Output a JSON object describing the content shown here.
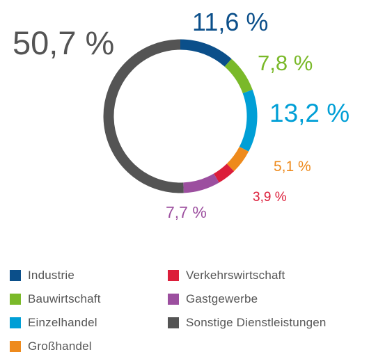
{
  "chart_data": {
    "type": "pie",
    "style": "donut",
    "legend_position": "bottom",
    "slices": [
      {
        "label": "Industrie",
        "value": 11.6,
        "display": "11,6 %",
        "color": "#0b4f8a"
      },
      {
        "label": "Bauwirtschaft",
        "value": 7.8,
        "display": "7,8 %",
        "color": "#7ab929"
      },
      {
        "label": "Einzelhandel",
        "value": 13.2,
        "display": "13,2 %",
        "color": "#009fd6"
      },
      {
        "label": "Großhandel",
        "value": 5.1,
        "display": "5,1 %",
        "color": "#ee8a1c"
      },
      {
        "label": "Verkehrswirtschaft",
        "value": 3.9,
        "display": "3,9 %",
        "color": "#dc1e3a"
      },
      {
        "label": "Gastgewerbe",
        "value": 7.7,
        "display": "7,7 %",
        "color": "#9c4f9f"
      },
      {
        "label": "Sonstige Dienstleistungen",
        "value": 50.7,
        "display": "50,7 %",
        "color": "#545454"
      }
    ]
  }
}
